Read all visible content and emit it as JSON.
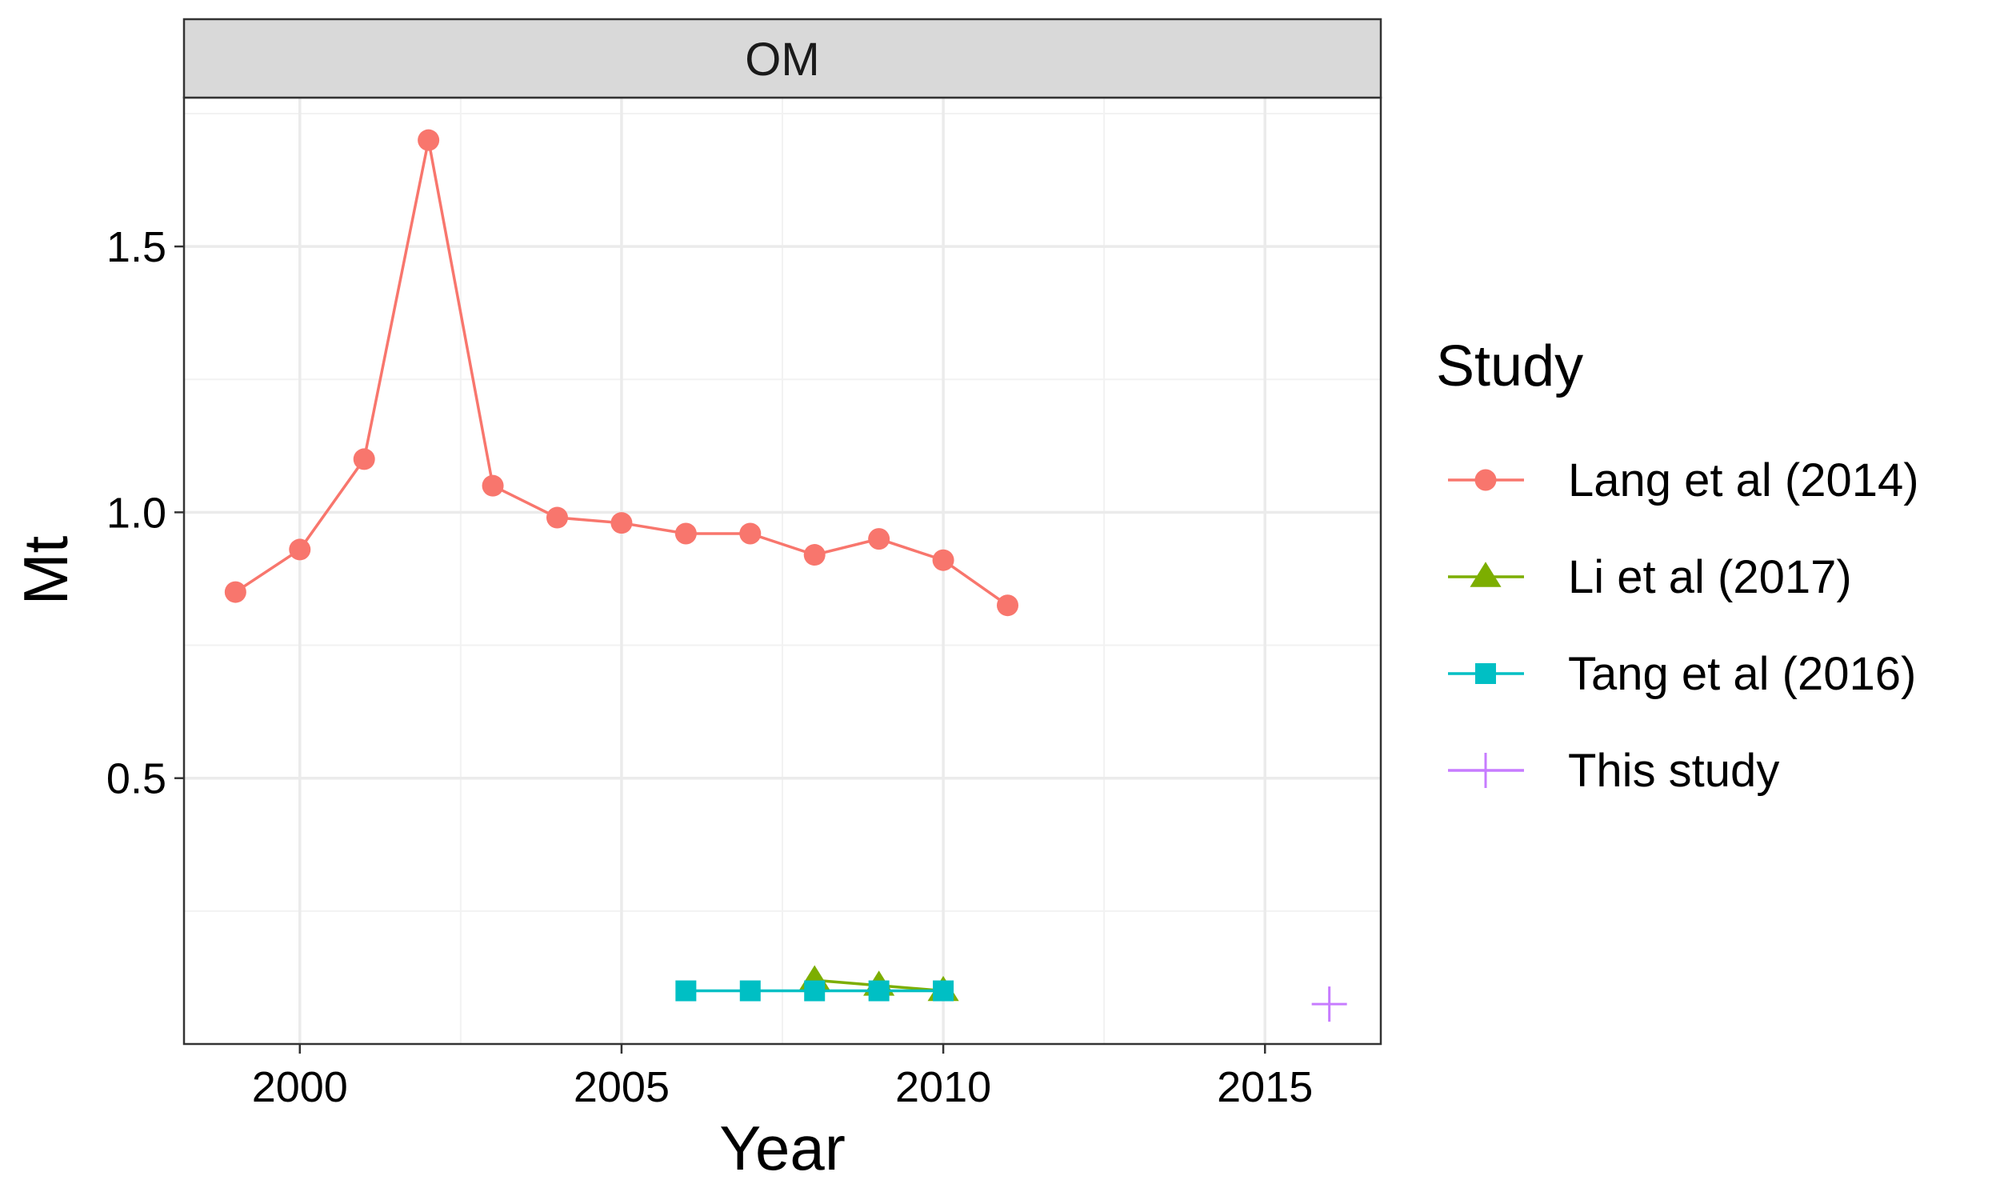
{
  "chart_data": {
    "type": "line",
    "facet": "OM",
    "xlabel": "Year",
    "ylabel": "Mt",
    "xlim": [
      1998.2,
      2016.8
    ],
    "ylim": [
      0.0,
      1.78
    ],
    "x_ticks": [
      2000,
      2005,
      2010,
      2015
    ],
    "y_ticks": [
      0.5,
      1.0,
      1.5
    ],
    "y_tick_labels": [
      "0.5",
      "1.0",
      "1.5"
    ],
    "grid": true,
    "legend": {
      "title": "Study",
      "position": "right"
    },
    "series": [
      {
        "name": "Lang et al (2014)",
        "color": "#F8766D",
        "marker": "circle",
        "line": true,
        "points": [
          [
            1999,
            0.85
          ],
          [
            2000,
            0.93
          ],
          [
            2001,
            1.1
          ],
          [
            2002,
            1.7
          ],
          [
            2003,
            1.05
          ],
          [
            2004,
            0.99
          ],
          [
            2005,
            0.98
          ],
          [
            2006,
            0.96
          ],
          [
            2007,
            0.96
          ],
          [
            2008,
            0.92
          ],
          [
            2009,
            0.95
          ],
          [
            2010,
            0.91
          ],
          [
            2011,
            0.825
          ]
        ]
      },
      {
        "name": "Li et al (2017)",
        "color": "#7CAE00",
        "marker": "triangle",
        "line": true,
        "points": [
          [
            2008,
            0.12
          ],
          [
            2009,
            0.11
          ],
          [
            2010,
            0.1
          ]
        ]
      },
      {
        "name": "Tang et al (2016)",
        "color": "#00BFC4",
        "marker": "square",
        "line": true,
        "points": [
          [
            2006,
            0.1
          ],
          [
            2007,
            0.1
          ],
          [
            2008,
            0.1
          ],
          [
            2009,
            0.1
          ],
          [
            2010,
            0.1
          ]
        ]
      },
      {
        "name": "This study",
        "color": "#C77CFF",
        "marker": "plus",
        "line": false,
        "points": [
          [
            2016,
            0.075
          ]
        ]
      }
    ]
  }
}
